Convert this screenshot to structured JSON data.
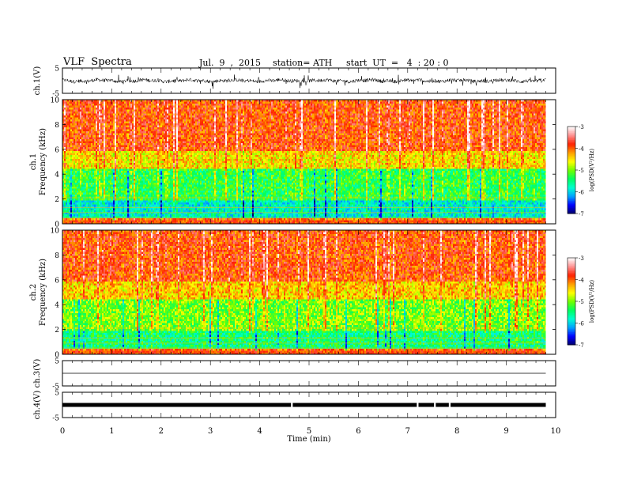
{
  "header": {
    "title": "VLF  Spectra",
    "date": "Jul.  9  ,  2015",
    "station": "station= ATH",
    "start": "start  UT  =   4  : 20 : 0"
  },
  "chart_data": [
    {
      "type": "line",
      "panel": "ch1-waveform",
      "ylabel": "ch.1(V)",
      "yticks": [
        "5",
        "-5"
      ],
      "ylim": [
        -5,
        5
      ],
      "xlim": [
        0,
        10
      ],
      "data_end_min": 9.8,
      "note_values": "dense noise waveform around 0 V, amplitude approx ±1 V"
    },
    {
      "type": "heatmap",
      "panel": "ch1-spectrogram",
      "ylabel_channel": "ch.1",
      "ylabel": "Frequency  (kHz)",
      "yticks": [
        "0",
        "2",
        "4",
        "6",
        "8",
        "10"
      ],
      "ylim": [
        0,
        10
      ],
      "xlim": [
        0,
        10
      ],
      "data_end_min": 9.8,
      "colorbar": {
        "label": "log(PSD(V²/Hz)",
        "ticks": [
          "-3",
          "-4",
          "-5",
          "-6",
          "-7"
        ],
        "range": [
          -7,
          -3
        ]
      },
      "bands": [
        {
          "freq_kHz": [
            0,
            0.5
          ],
          "level": -4.0
        },
        {
          "freq_kHz": [
            0.5,
            2.0
          ],
          "level": -5.8
        },
        {
          "freq_kHz": [
            2.0,
            4.5
          ],
          "level": -5.3
        },
        {
          "freq_kHz": [
            4.5,
            6.0
          ],
          "level": -4.5
        },
        {
          "freq_kHz": [
            6.0,
            10.0
          ],
          "level": -3.9
        }
      ]
    },
    {
      "type": "heatmap",
      "panel": "ch2-spectrogram",
      "ylabel_channel": "ch.2",
      "ylabel": "Frequency  (kHz)",
      "yticks": [
        "0",
        "2",
        "4",
        "6",
        "8",
        "10"
      ],
      "ylim": [
        0,
        10
      ],
      "xlim": [
        0,
        10
      ],
      "data_end_min": 9.8,
      "colorbar": {
        "label": "log(PSD(V²/Hz)",
        "ticks": [
          "-3",
          "-4",
          "-5",
          "-6",
          "-7"
        ],
        "range": [
          -7,
          -3
        ]
      },
      "bands": [
        {
          "freq_kHz": [
            0,
            0.5
          ],
          "level": -4.0
        },
        {
          "freq_kHz": [
            0.5,
            2.0
          ],
          "level": -5.5
        },
        {
          "freq_kHz": [
            2.0,
            4.5
          ],
          "level": -5.0
        },
        {
          "freq_kHz": [
            4.5,
            6.0
          ],
          "level": -4.4
        },
        {
          "freq_kHz": [
            6.0,
            10.0
          ],
          "level": -3.9
        }
      ]
    },
    {
      "type": "line",
      "panel": "ch3-waveform",
      "ylabel": "ch.3(V)",
      "yticks": [
        "5",
        "-5"
      ],
      "ylim": [
        -5,
        5
      ],
      "xlim": [
        0,
        10
      ],
      "data_end_min": 9.8,
      "level_V": 0
    },
    {
      "type": "line",
      "panel": "ch4-waveform",
      "ylabel": "ch.4(V)",
      "yticks": [
        "5",
        "-5"
      ],
      "ylim": [
        -5,
        5
      ],
      "xlim": [
        0,
        10
      ],
      "data_end_min": 9.8,
      "level_V": 0,
      "gaps_min": [
        4.65,
        7.2,
        7.55,
        7.85
      ]
    }
  ],
  "xaxis": {
    "label": "Time  (min)",
    "ticks": [
      "0",
      "1",
      "2",
      "3",
      "4",
      "5",
      "6",
      "7",
      "8",
      "9",
      "10"
    ],
    "range": [
      0,
      10
    ]
  },
  "colors": {
    "cmap": [
      "#000066",
      "#0000ff",
      "#00a0ff",
      "#00ffd0",
      "#00ff60",
      "#70ff00",
      "#ffff00",
      "#ffa000",
      "#ff2000",
      "#ff9090",
      "#ffffff"
    ]
  }
}
